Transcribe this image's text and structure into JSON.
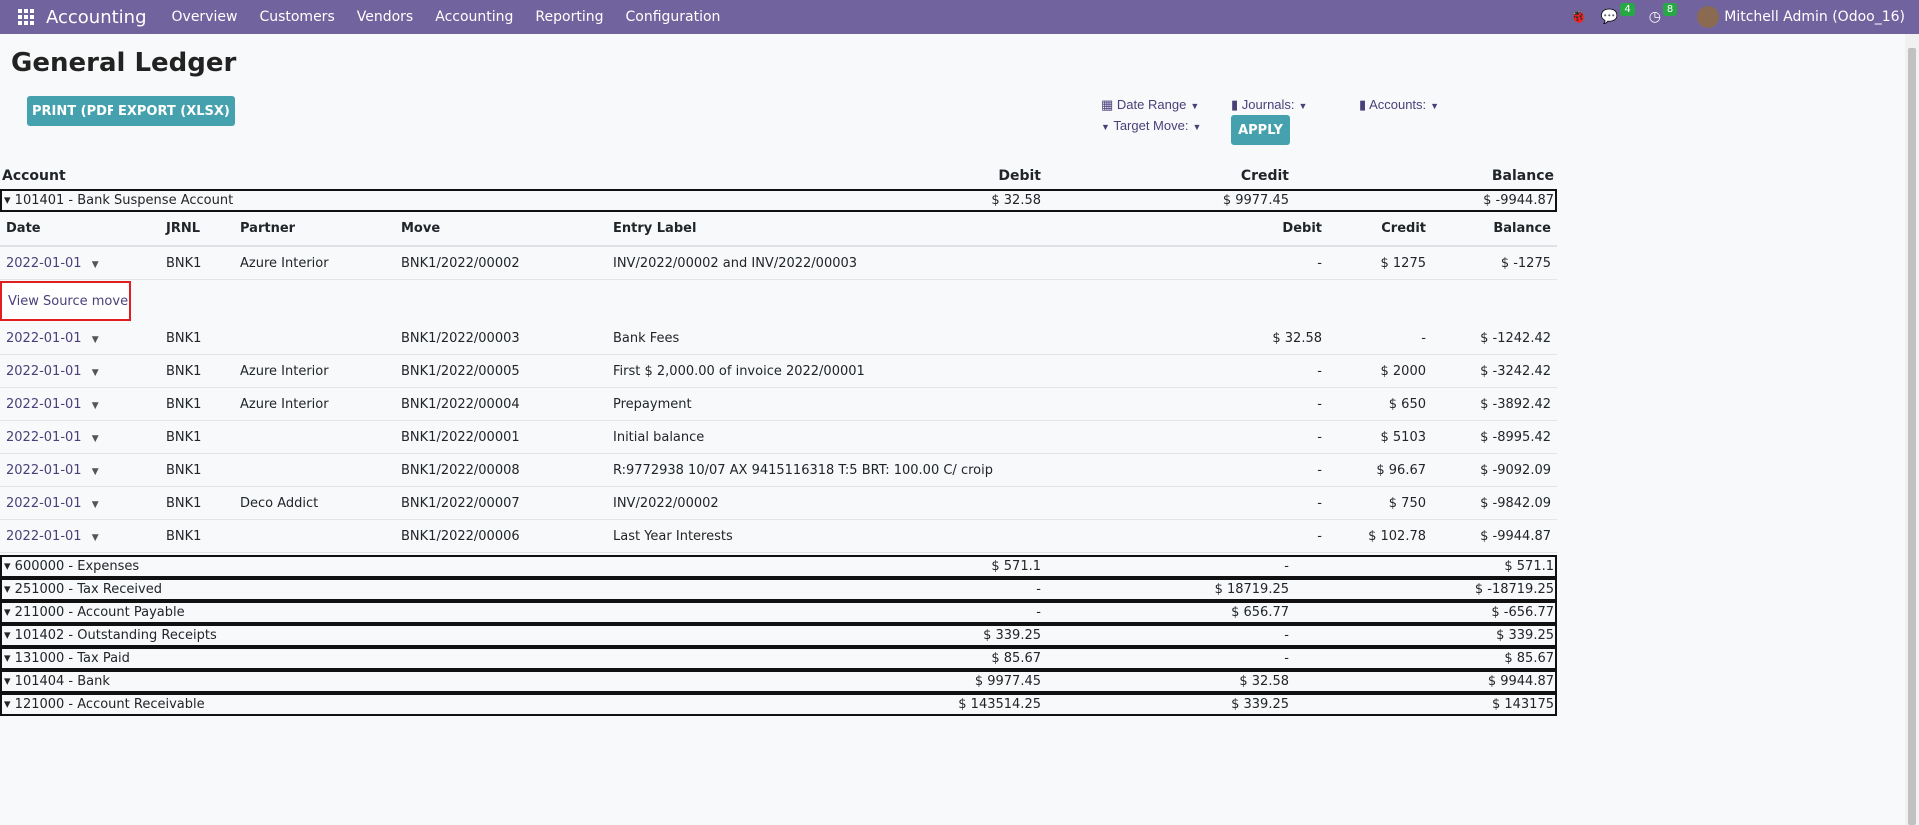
{
  "nav": {
    "app": "Accounting",
    "menu": [
      "Overview",
      "Customers",
      "Vendors",
      "Accounting",
      "Reporting",
      "Configuration"
    ],
    "messages_count": "4",
    "activities_count": "8",
    "user": "Mitchell Admin (Odoo_16)"
  },
  "page": {
    "title": "General Ledger",
    "print_label": "PRINT (PDF)",
    "export_label": "EXPORT (XLSX)"
  },
  "filters": {
    "date_range": "Date Range",
    "journals": "Journals:",
    "accounts": "Accounts:",
    "target_move": "Target Move:",
    "apply": "APPLY"
  },
  "table": {
    "headers": {
      "account": "Account",
      "debit": "Debit",
      "credit": "Credit",
      "balance": "Balance"
    },
    "detail_headers": {
      "date": "Date",
      "jrnl": "JRNL",
      "partner": "Partner",
      "move": "Move",
      "label": "Entry Label",
      "debit": "Debit",
      "credit": "Credit",
      "balance": "Balance"
    },
    "expanded": {
      "name": "101401 - Bank Suspense Account",
      "debit": "$ 32.58",
      "credit": "$ 9977.45",
      "balance": "$ -9944.87",
      "lines": [
        {
          "date": "2022-01-01",
          "jrnl": "BNK1",
          "partner": "Azure Interior",
          "move": "BNK1/2022/00002",
          "label": "INV/2022/00002 and INV/2022/00003",
          "debit": "-",
          "credit": "$ 1275",
          "balance": "$ -1275"
        },
        {
          "date": "2022-01-01",
          "jrnl": "BNK1",
          "partner": "",
          "move": "BNK1/2022/00003",
          "label": "Bank Fees",
          "debit": "$ 32.58",
          "credit": "-",
          "balance": "$ -1242.42"
        },
        {
          "date": "2022-01-01",
          "jrnl": "BNK1",
          "partner": "Azure Interior",
          "move": "BNK1/2022/00005",
          "label": "First $ 2,000.00 of invoice 2022/00001",
          "debit": "-",
          "credit": "$ 2000",
          "balance": "$ -3242.42"
        },
        {
          "date": "2022-01-01",
          "jrnl": "BNK1",
          "partner": "Azure Interior",
          "move": "BNK1/2022/00004",
          "label": "Prepayment",
          "debit": "-",
          "credit": "$ 650",
          "balance": "$ -3892.42"
        },
        {
          "date": "2022-01-01",
          "jrnl": "BNK1",
          "partner": "",
          "move": "BNK1/2022/00001",
          "label": "Initial balance",
          "debit": "-",
          "credit": "$ 5103",
          "balance": "$ -8995.42"
        },
        {
          "date": "2022-01-01",
          "jrnl": "BNK1",
          "partner": "",
          "move": "BNK1/2022/00008",
          "label": "R:9772938 10/07 AX 9415116318 T:5 BRT: 100.00 C/ croip",
          "debit": "-",
          "credit": "$ 96.67",
          "balance": "$ -9092.09"
        },
        {
          "date": "2022-01-01",
          "jrnl": "BNK1",
          "partner": "Deco Addict",
          "move": "BNK1/2022/00007",
          "label": "INV/2022/00002",
          "debit": "-",
          "credit": "$ 750",
          "balance": "$ -9842.09"
        },
        {
          "date": "2022-01-01",
          "jrnl": "BNK1",
          "partner": "",
          "move": "BNK1/2022/00006",
          "label": "Last Year Interests",
          "debit": "-",
          "credit": "$ 102.78",
          "balance": "$ -9944.87"
        }
      ]
    },
    "accounts": [
      {
        "name": "600000 - Expenses",
        "debit": "$ 571.1",
        "credit": "-",
        "balance": "$ 571.1"
      },
      {
        "name": "251000 - Tax Received",
        "debit": "-",
        "credit": "$ 18719.25",
        "balance": "$ -18719.25"
      },
      {
        "name": "211000 - Account Payable",
        "debit": "-",
        "credit": "$ 656.77",
        "balance": "$ -656.77"
      },
      {
        "name": "101402 - Outstanding Receipts",
        "debit": "$ 339.25",
        "credit": "-",
        "balance": "$ 339.25"
      },
      {
        "name": "131000 - Tax Paid",
        "debit": "$ 85.67",
        "credit": "-",
        "balance": "$ 85.67"
      },
      {
        "name": "101404 - Bank",
        "debit": "$ 9977.45",
        "credit": "$ 32.58",
        "balance": "$ 9944.87"
      },
      {
        "name": "121000 - Account Receivable",
        "debit": "$ 143514.25",
        "credit": "$ 339.25",
        "balance": "$ 143175"
      }
    ]
  },
  "popup": {
    "label": "View Source move"
  }
}
